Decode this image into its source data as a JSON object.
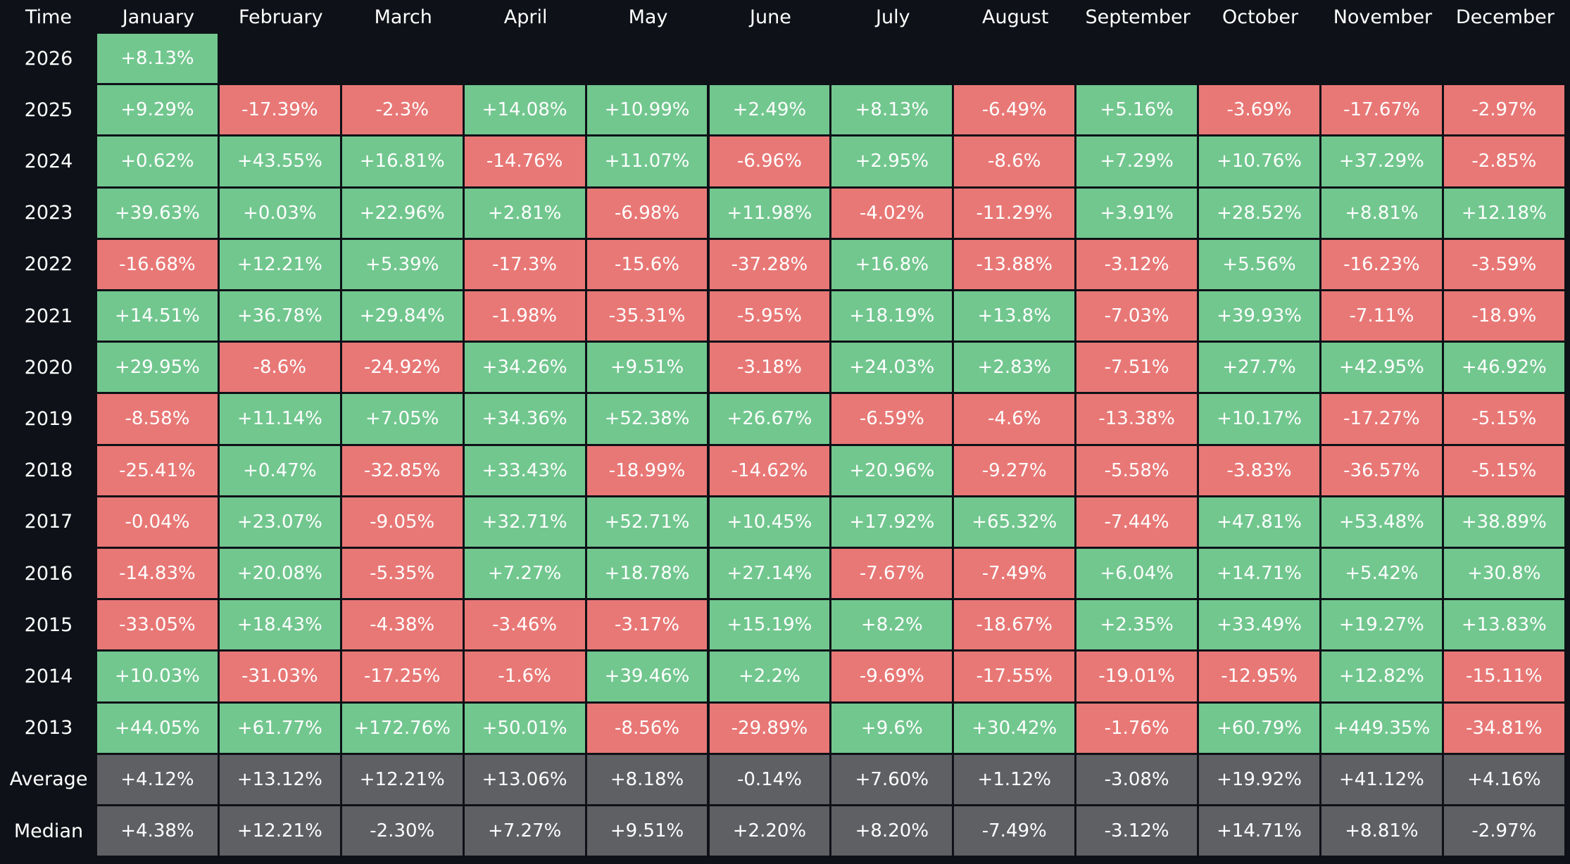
{
  "chart_data": {
    "type": "heatmap",
    "corner_label": "Time",
    "columns": [
      "January",
      "February",
      "March",
      "April",
      "May",
      "June",
      "July",
      "August",
      "September",
      "October",
      "November",
      "December"
    ],
    "rows": [
      {
        "label": "2026",
        "values": [
          "+8.13%"
        ]
      },
      {
        "label": "2025",
        "values": [
          "+9.29%",
          "-17.39%",
          "-2.3%",
          "+14.08%",
          "+10.99%",
          "+2.49%",
          "+8.13%",
          "-6.49%",
          "+5.16%",
          "-3.69%",
          "-17.67%",
          "-2.97%"
        ]
      },
      {
        "label": "2024",
        "values": [
          "+0.62%",
          "+43.55%",
          "+16.81%",
          "-14.76%",
          "+11.07%",
          "-6.96%",
          "+2.95%",
          "-8.6%",
          "+7.29%",
          "+10.76%",
          "+37.29%",
          "-2.85%"
        ]
      },
      {
        "label": "2023",
        "values": [
          "+39.63%",
          "+0.03%",
          "+22.96%",
          "+2.81%",
          "-6.98%",
          "+11.98%",
          "-4.02%",
          "-11.29%",
          "+3.91%",
          "+28.52%",
          "+8.81%",
          "+12.18%"
        ]
      },
      {
        "label": "2022",
        "values": [
          "-16.68%",
          "+12.21%",
          "+5.39%",
          "-17.3%",
          "-15.6%",
          "-37.28%",
          "+16.8%",
          "-13.88%",
          "-3.12%",
          "+5.56%",
          "-16.23%",
          "-3.59%"
        ]
      },
      {
        "label": "2021",
        "values": [
          "+14.51%",
          "+36.78%",
          "+29.84%",
          "-1.98%",
          "-35.31%",
          "-5.95%",
          "+18.19%",
          "+13.8%",
          "-7.03%",
          "+39.93%",
          "-7.11%",
          "-18.9%"
        ]
      },
      {
        "label": "2020",
        "values": [
          "+29.95%",
          "-8.6%",
          "-24.92%",
          "+34.26%",
          "+9.51%",
          "-3.18%",
          "+24.03%",
          "+2.83%",
          "-7.51%",
          "+27.7%",
          "+42.95%",
          "+46.92%"
        ]
      },
      {
        "label": "2019",
        "values": [
          "-8.58%",
          "+11.14%",
          "+7.05%",
          "+34.36%",
          "+52.38%",
          "+26.67%",
          "-6.59%",
          "-4.6%",
          "-13.38%",
          "+10.17%",
          "-17.27%",
          "-5.15%"
        ]
      },
      {
        "label": "2018",
        "values": [
          "-25.41%",
          "+0.47%",
          "-32.85%",
          "+33.43%",
          "-18.99%",
          "-14.62%",
          "+20.96%",
          "-9.27%",
          "-5.58%",
          "-3.83%",
          "-36.57%",
          "-5.15%"
        ]
      },
      {
        "label": "2017",
        "values": [
          "-0.04%",
          "+23.07%",
          "-9.05%",
          "+32.71%",
          "+52.71%",
          "+10.45%",
          "+17.92%",
          "+65.32%",
          "-7.44%",
          "+47.81%",
          "+53.48%",
          "+38.89%"
        ]
      },
      {
        "label": "2016",
        "values": [
          "-14.83%",
          "+20.08%",
          "-5.35%",
          "+7.27%",
          "+18.78%",
          "+27.14%",
          "-7.67%",
          "-7.49%",
          "+6.04%",
          "+14.71%",
          "+5.42%",
          "+30.8%"
        ]
      },
      {
        "label": "2015",
        "values": [
          "-33.05%",
          "+18.43%",
          "-4.38%",
          "-3.46%",
          "-3.17%",
          "+15.19%",
          "+8.2%",
          "-18.67%",
          "+2.35%",
          "+33.49%",
          "+19.27%",
          "+13.83%"
        ]
      },
      {
        "label": "2014",
        "values": [
          "+10.03%",
          "-31.03%",
          "-17.25%",
          "-1.6%",
          "+39.46%",
          "+2.2%",
          "-9.69%",
          "-17.55%",
          "-19.01%",
          "-12.95%",
          "+12.82%",
          "-15.11%"
        ]
      },
      {
        "label": "2013",
        "values": [
          "+44.05%",
          "+61.77%",
          "+172.76%",
          "+50.01%",
          "-8.56%",
          "-29.89%",
          "+9.6%",
          "+30.42%",
          "-1.76%",
          "+60.79%",
          "+449.35%",
          "-34.81%"
        ]
      }
    ],
    "summary_rows": [
      {
        "label": "Average",
        "values": [
          "+4.12%",
          "+13.12%",
          "+12.21%",
          "+13.06%",
          "+8.18%",
          "-0.14%",
          "+7.60%",
          "+1.12%",
          "-3.08%",
          "+19.92%",
          "+41.12%",
          "+4.16%"
        ]
      },
      {
        "label": "Median",
        "values": [
          "+4.38%",
          "+12.21%",
          "-2.30%",
          "+7.27%",
          "+9.51%",
          "+2.20%",
          "+8.20%",
          "-7.49%",
          "-3.12%",
          "+14.71%",
          "+8.81%",
          "-2.97%"
        ]
      }
    ],
    "colors": {
      "background": "#0e1117",
      "positive": "#72c78f",
      "negative": "#e87876",
      "summary": "#5f6064",
      "text": "#ffffff"
    }
  }
}
